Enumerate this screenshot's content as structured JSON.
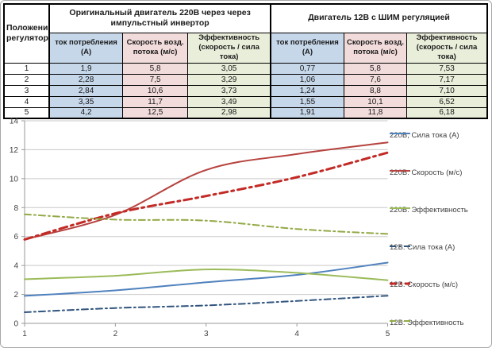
{
  "table": {
    "corner_header": "Положение регулятора",
    "group_220v_title": "Оригинальный двигатель 220В через через импульстный инвертор",
    "group_12v_title": "Двигатель 12В с ШИМ регуляцией",
    "sub_headers": [
      "ток потребления (А)",
      "Скорость возд. потока (м/с)",
      "Эффективность (скорость / сила тока)"
    ],
    "rows": [
      {
        "pos": "1",
        "left": [
          "1,9",
          "5,8",
          "3,05"
        ],
        "right": [
          "0,77",
          "5,8",
          "7,53"
        ]
      },
      {
        "pos": "2",
        "left": [
          "2,28",
          "7,5",
          "3,29"
        ],
        "right": [
          "1,06",
          "7,6",
          "7,17"
        ]
      },
      {
        "pos": "3",
        "left": [
          "2,84",
          "10,6",
          "3,73"
        ],
        "right": [
          "1,24",
          "8,8",
          "7,10"
        ]
      },
      {
        "pos": "4",
        "left": [
          "3,35",
          "11,7",
          "3,49"
        ],
        "right": [
          "1,55",
          "10,1",
          "6,52"
        ]
      },
      {
        "pos": "5",
        "left": [
          "4,2",
          "12,5",
          "2,98"
        ],
        "right": [
          "1,91",
          "11,8",
          "6,18"
        ]
      }
    ],
    "cell_colors": {
      "current": "#c6d7ea",
      "speed": "#f2dcdb",
      "efficiency": "#e9eeda"
    }
  },
  "chart_data": {
    "type": "line",
    "x": [
      1,
      2,
      3,
      4,
      5
    ],
    "xlim": [
      1,
      5
    ],
    "ylim": [
      0,
      14
    ],
    "yticks": [
      0,
      2,
      4,
      6,
      8,
      10,
      12,
      14
    ],
    "xticks": [
      1,
      2,
      3,
      4,
      5
    ],
    "grid": true,
    "legend_position": "right",
    "smoothed": true,
    "series": [
      {
        "name": "220В, Сила тока (А)",
        "values": [
          1.9,
          2.28,
          2.84,
          3.35,
          4.2
        ],
        "color": "#4f81bd",
        "style": "solid",
        "width": 2
      },
      {
        "name": "220В: Скорость (м/с)",
        "values": [
          5.8,
          7.5,
          10.6,
          11.7,
          12.5
        ],
        "color": "#b6423e",
        "style": "solid",
        "width": 2
      },
      {
        "name": "220В: Эффективность",
        "values": [
          3.05,
          3.29,
          3.73,
          3.49,
          2.98
        ],
        "color": "#9bbb59",
        "style": "solid",
        "width": 2
      },
      {
        "name": "12В: Сила тока (А)",
        "values": [
          0.77,
          1.06,
          1.24,
          1.55,
          1.91
        ],
        "color": "#31557f",
        "style": "dashdot",
        "width": 2
      },
      {
        "name": "12В: Скорость (м/с)",
        "values": [
          5.8,
          7.6,
          8.8,
          10.1,
          11.8
        ],
        "color": "#c32a26",
        "style": "dashdot",
        "width": 3
      },
      {
        "name": "12В: Эффективность",
        "values": [
          7.53,
          7.17,
          7.1,
          6.52,
          6.18
        ],
        "color": "#93a946",
        "style": "dashdot",
        "width": 2
      }
    ],
    "colors": {
      "gridline": "#c9c9c9",
      "axis": "#9a9a9a",
      "tick_label": "#3f3f3f"
    }
  }
}
